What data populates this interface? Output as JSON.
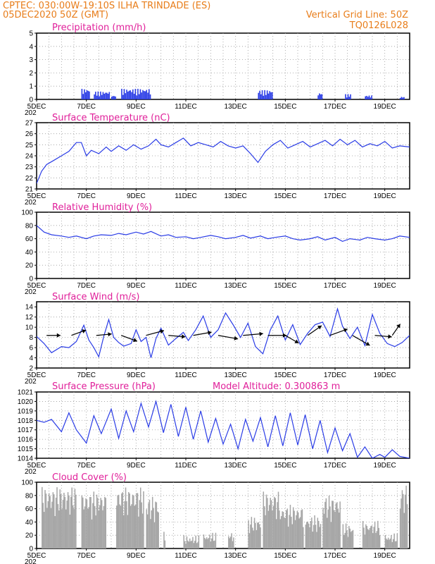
{
  "header": {
    "line1_left": "CPTEC:   030:00W-19:10S  ILHA TRINDADE (ES)",
    "line2_left": "05DEC2020 50Z (GMT)",
    "line1_right": "Vertical Grid Line: 50Z",
    "line2_right": "TQ0126L028"
  },
  "x_ticks": [
    "5DEC",
    "7DEC",
    "9DEC",
    "11DEC",
    "13DEC",
    "15DEC",
    "17DEC",
    "19DEC"
  ],
  "year_stub": "202",
  "colors": {
    "line": "#2a3ce6",
    "bar": "#2a3ce6",
    "cloud": "#a6a6a6",
    "grid": "#9a9a9a",
    "title": "#e0209a",
    "header": "#e87d1a"
  },
  "chart_data": [
    {
      "type": "bar",
      "title": "Precipitation (mm/h)",
      "ylim": [
        0,
        5
      ],
      "yticks": [
        "0",
        "1",
        "2",
        "3",
        "4",
        "5"
      ],
      "x_range_days": [
        5,
        20
      ],
      "bursts": [
        {
          "start": 6.8,
          "end": 7.1,
          "peak": 0.8
        },
        {
          "start": 7.3,
          "end": 7.9,
          "peak": 0.6
        },
        {
          "start": 8.0,
          "end": 8.2,
          "peak": 0.3
        },
        {
          "start": 8.4,
          "end": 9.6,
          "peak": 0.8
        },
        {
          "start": 13.9,
          "end": 14.5,
          "peak": 0.7
        },
        {
          "start": 16.3,
          "end": 16.5,
          "peak": 0.5
        },
        {
          "start": 17.4,
          "end": 17.6,
          "peak": 0.4
        },
        {
          "start": 18.2,
          "end": 18.5,
          "peak": 0.3
        },
        {
          "start": 19.6,
          "end": 19.8,
          "peak": 0.2
        }
      ]
    },
    {
      "type": "line",
      "title": "Surface Temperature (nC)",
      "ylim": [
        21,
        27
      ],
      "yticks": [
        "21",
        "22",
        "23",
        "24",
        "25",
        "26",
        "27"
      ],
      "points": [
        [
          5.0,
          21.5
        ],
        [
          5.2,
          22.6
        ],
        [
          5.4,
          23.2
        ],
        [
          5.7,
          23.6
        ],
        [
          6.0,
          24.0
        ],
        [
          6.3,
          24.4
        ],
        [
          6.6,
          25.2
        ],
        [
          6.8,
          25.2
        ],
        [
          7.0,
          24.0
        ],
        [
          7.2,
          24.5
        ],
        [
          7.5,
          24.2
        ],
        [
          7.8,
          24.8
        ],
        [
          8.0,
          24.4
        ],
        [
          8.3,
          24.9
        ],
        [
          8.6,
          24.5
        ],
        [
          8.9,
          25.0
        ],
        [
          9.2,
          24.6
        ],
        [
          9.5,
          24.9
        ],
        [
          9.8,
          25.5
        ],
        [
          10.0,
          25.0
        ],
        [
          10.3,
          24.8
        ],
        [
          10.6,
          25.2
        ],
        [
          10.9,
          25.6
        ],
        [
          11.2,
          24.9
        ],
        [
          11.5,
          25.2
        ],
        [
          11.8,
          25.0
        ],
        [
          12.1,
          24.8
        ],
        [
          12.4,
          25.3
        ],
        [
          12.7,
          24.9
        ],
        [
          13.0,
          24.7
        ],
        [
          13.3,
          24.9
        ],
        [
          13.6,
          24.2
        ],
        [
          13.9,
          23.4
        ],
        [
          14.2,
          24.4
        ],
        [
          14.5,
          25.0
        ],
        [
          14.8,
          25.4
        ],
        [
          15.1,
          24.7
        ],
        [
          15.4,
          25.0
        ],
        [
          15.7,
          25.3
        ],
        [
          16.0,
          24.8
        ],
        [
          16.3,
          25.1
        ],
        [
          16.6,
          25.4
        ],
        [
          16.9,
          24.9
        ],
        [
          17.2,
          25.5
        ],
        [
          17.5,
          25.0
        ],
        [
          17.8,
          25.4
        ],
        [
          18.1,
          24.8
        ],
        [
          18.4,
          25.1
        ],
        [
          18.7,
          24.9
        ],
        [
          19.0,
          25.3
        ],
        [
          19.3,
          24.7
        ],
        [
          19.6,
          24.9
        ],
        [
          20.0,
          24.8
        ]
      ]
    },
    {
      "type": "line",
      "title": "Relative Humidity (%)",
      "ylim": [
        0,
        100
      ],
      "yticks": [
        "0",
        "20",
        "40",
        "60",
        "80",
        "100"
      ],
      "points": [
        [
          5.0,
          80
        ],
        [
          5.3,
          70
        ],
        [
          5.6,
          66
        ],
        [
          6.0,
          64
        ],
        [
          6.3,
          62
        ],
        [
          6.6,
          64
        ],
        [
          7.0,
          60
        ],
        [
          7.3,
          64
        ],
        [
          7.6,
          66
        ],
        [
          8.0,
          65
        ],
        [
          8.3,
          68
        ],
        [
          8.6,
          66
        ],
        [
          9.0,
          70
        ],
        [
          9.3,
          67
        ],
        [
          9.6,
          71
        ],
        [
          10.0,
          64
        ],
        [
          10.3,
          66
        ],
        [
          10.6,
          62
        ],
        [
          11.0,
          63
        ],
        [
          11.3,
          60
        ],
        [
          11.6,
          62
        ],
        [
          12.0,
          65
        ],
        [
          12.3,
          63
        ],
        [
          12.6,
          60
        ],
        [
          13.0,
          62
        ],
        [
          13.3,
          65
        ],
        [
          13.6,
          61
        ],
        [
          14.0,
          64
        ],
        [
          14.3,
          60
        ],
        [
          14.6,
          62
        ],
        [
          15.0,
          64
        ],
        [
          15.3,
          60
        ],
        [
          15.6,
          58
        ],
        [
          16.0,
          60
        ],
        [
          16.3,
          63
        ],
        [
          16.6,
          58
        ],
        [
          17.0,
          62
        ],
        [
          17.3,
          56
        ],
        [
          17.6,
          60
        ],
        [
          18.0,
          58
        ],
        [
          18.3,
          62
        ],
        [
          18.6,
          60
        ],
        [
          19.0,
          58
        ],
        [
          19.3,
          60
        ],
        [
          19.6,
          64
        ],
        [
          20.0,
          62
        ]
      ]
    },
    {
      "type": "line",
      "title": "Surface Wind (m/s)",
      "ylim": [
        2,
        15
      ],
      "yticks": [
        "2",
        "4",
        "6",
        "8",
        "10",
        "12",
        "14"
      ],
      "points": [
        [
          5.0,
          8.2
        ],
        [
          5.3,
          6.8
        ],
        [
          5.6,
          5.0
        ],
        [
          6.0,
          6.2
        ],
        [
          6.3,
          6.0
        ],
        [
          6.6,
          7.2
        ],
        [
          6.9,
          10.4
        ],
        [
          7.1,
          7.5
        ],
        [
          7.3,
          6.0
        ],
        [
          7.5,
          4.2
        ],
        [
          7.7,
          8.2
        ],
        [
          7.9,
          11.5
        ],
        [
          8.1,
          8.0
        ],
        [
          8.3,
          7.0
        ],
        [
          8.5,
          6.3
        ],
        [
          8.8,
          6.8
        ],
        [
          9.0,
          9.5
        ],
        [
          9.2,
          7.2
        ],
        [
          9.4,
          8.0
        ],
        [
          9.6,
          4.0
        ],
        [
          9.8,
          7.8
        ],
        [
          10.0,
          9.8
        ],
        [
          10.3,
          6.5
        ],
        [
          10.6,
          7.8
        ],
        [
          10.9,
          9.0
        ],
        [
          11.1,
          7.4
        ],
        [
          11.4,
          9.5
        ],
        [
          11.7,
          12.2
        ],
        [
          12.0,
          8.0
        ],
        [
          12.3,
          9.5
        ],
        [
          12.6,
          12.8
        ],
        [
          12.9,
          10.5
        ],
        [
          13.2,
          8.0
        ],
        [
          13.5,
          10.8
        ],
        [
          13.8,
          6.2
        ],
        [
          14.1,
          4.8
        ],
        [
          14.4,
          9.5
        ],
        [
          14.7,
          12.2
        ],
        [
          15.0,
          7.5
        ],
        [
          15.3,
          10.5
        ],
        [
          15.6,
          6.6
        ],
        [
          15.9,
          8.8
        ],
        [
          16.2,
          10.5
        ],
        [
          16.5,
          11.0
        ],
        [
          16.8,
          8.2
        ],
        [
          17.1,
          13.6
        ],
        [
          17.3,
          10.2
        ],
        [
          17.6,
          7.8
        ],
        [
          17.9,
          10.0
        ],
        [
          18.2,
          6.4
        ],
        [
          18.5,
          12.5
        ],
        [
          18.8,
          8.8
        ],
        [
          19.1,
          6.8
        ],
        [
          19.4,
          6.2
        ],
        [
          19.7,
          7.0
        ],
        [
          20.0,
          8.4
        ]
      ],
      "wind_barbs": [
        {
          "t": 5.4,
          "dir": 270,
          "len": 0.9
        },
        {
          "t": 6.4,
          "dir": 250,
          "len": 1.0
        },
        {
          "t": 7.4,
          "dir": 265,
          "len": 1.0
        },
        {
          "t": 8.4,
          "dir": 290,
          "len": 1.1
        },
        {
          "t": 9.4,
          "dir": 255,
          "len": 1.2
        },
        {
          "t": 10.3,
          "dir": 275,
          "len": 1.1
        },
        {
          "t": 11.3,
          "dir": 260,
          "len": 1.2
        },
        {
          "t": 12.3,
          "dir": 280,
          "len": 1.3
        },
        {
          "t": 13.3,
          "dir": 265,
          "len": 1.3
        },
        {
          "t": 14.3,
          "dir": 270,
          "len": 1.2
        },
        {
          "t": 15.0,
          "dir": 300,
          "len": 1.0
        },
        {
          "t": 15.9,
          "dir": 235,
          "len": 1.1
        },
        {
          "t": 16.8,
          "dir": 250,
          "len": 1.2
        },
        {
          "t": 17.7,
          "dir": 300,
          "len": 1.3
        },
        {
          "t": 18.6,
          "dir": 275,
          "len": 1.1
        },
        {
          "t": 19.3,
          "dir": 215,
          "len": 0.9
        }
      ]
    },
    {
      "type": "line",
      "title": "Surface Pressure (hPa)",
      "annotation": "Model Altitude: 0.300863 m",
      "ylim": [
        1014,
        1021
      ],
      "yticks": [
        "1014",
        "1015",
        "1016",
        "1017",
        "1018",
        "1019",
        "1020",
        "1021"
      ],
      "points": [
        [
          5.0,
          1018.0
        ],
        [
          5.3,
          1017.8
        ],
        [
          5.6,
          1018.1
        ],
        [
          6.0,
          1016.8
        ],
        [
          6.3,
          1018.8
        ],
        [
          6.6,
          1017.0
        ],
        [
          7.0,
          1015.6
        ],
        [
          7.3,
          1018.5
        ],
        [
          7.6,
          1016.6
        ],
        [
          8.0,
          1019.2
        ],
        [
          8.3,
          1016.1
        ],
        [
          8.6,
          1019.0
        ],
        [
          8.9,
          1016.8
        ],
        [
          9.2,
          1019.8
        ],
        [
          9.5,
          1017.3
        ],
        [
          9.8,
          1020.0
        ],
        [
          10.1,
          1016.7
        ],
        [
          10.4,
          1019.7
        ],
        [
          10.7,
          1016.3
        ],
        [
          11.0,
          1019.4
        ],
        [
          11.3,
          1016.0
        ],
        [
          11.6,
          1019.0
        ],
        [
          11.9,
          1015.7
        ],
        [
          12.2,
          1018.2
        ],
        [
          12.5,
          1015.5
        ],
        [
          12.8,
          1017.6
        ],
        [
          13.1,
          1015.0
        ],
        [
          13.4,
          1018.1
        ],
        [
          13.7,
          1015.8
        ],
        [
          14.0,
          1018.3
        ],
        [
          14.3,
          1015.2
        ],
        [
          14.6,
          1018.5
        ],
        [
          14.9,
          1015.3
        ],
        [
          15.2,
          1018.8
        ],
        [
          15.5,
          1015.4
        ],
        [
          15.8,
          1018.6
        ],
        [
          16.1,
          1015.0
        ],
        [
          16.4,
          1018.0
        ],
        [
          16.7,
          1014.6
        ],
        [
          17.0,
          1017.2
        ],
        [
          17.3,
          1014.8
        ],
        [
          17.6,
          1016.6
        ],
        [
          17.9,
          1014.1
        ],
        [
          18.2,
          1015.2
        ],
        [
          18.5,
          1014.0
        ],
        [
          18.8,
          1014.4
        ],
        [
          19.0,
          1014.1
        ],
        [
          19.3,
          1014.9
        ],
        [
          19.6,
          1014.2
        ],
        [
          20.0,
          1014.0
        ]
      ]
    },
    {
      "type": "bar",
      "title": "Cloud Cover (%)",
      "ylim": [
        0,
        100
      ],
      "yticks": [
        "0",
        "20",
        "40",
        "60",
        "80",
        "100"
      ],
      "blocks": [
        {
          "start": 5.2,
          "end": 6.6,
          "level": 85
        },
        {
          "start": 6.8,
          "end": 7.8,
          "level": 78
        },
        {
          "start": 8.2,
          "end": 9.3,
          "level": 84
        },
        {
          "start": 9.4,
          "end": 9.9,
          "level": 70
        },
        {
          "start": 10.1,
          "end": 10.15,
          "level": 18
        },
        {
          "start": 10.9,
          "end": 11.5,
          "level": 12
        },
        {
          "start": 11.7,
          "end": 12.2,
          "level": 16
        },
        {
          "start": 12.7,
          "end": 12.9,
          "level": 18
        },
        {
          "start": 13.5,
          "end": 14.0,
          "level": 40
        },
        {
          "start": 14.1,
          "end": 14.7,
          "level": 78
        },
        {
          "start": 14.7,
          "end": 15.7,
          "level": 58
        },
        {
          "start": 15.8,
          "end": 16.4,
          "level": 42
        },
        {
          "start": 16.5,
          "end": 17.2,
          "level": 72
        },
        {
          "start": 17.3,
          "end": 17.7,
          "level": 30
        },
        {
          "start": 18.1,
          "end": 18.8,
          "level": 34
        },
        {
          "start": 19.0,
          "end": 19.5,
          "level": 15
        },
        {
          "start": 19.6,
          "end": 19.9,
          "level": 88
        }
      ]
    }
  ]
}
